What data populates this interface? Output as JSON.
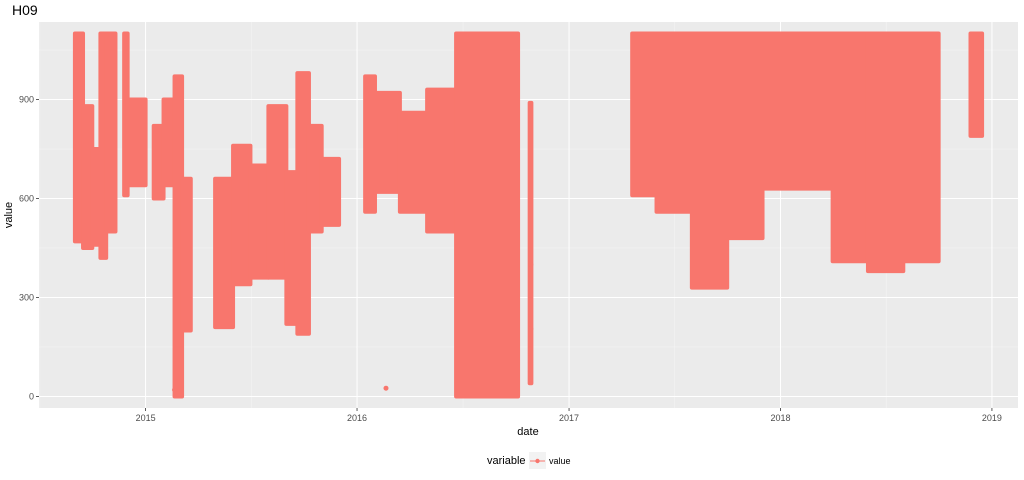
{
  "chart_data": {
    "type": "line",
    "title": "H09",
    "xlabel": "date",
    "ylabel": "value",
    "x_axis_type": "date",
    "xlim": [
      "2014-07-01",
      "2019-02-15"
    ],
    "ylim": [
      -35,
      1135
    ],
    "x_ticks": [
      {
        "date": "2015-01-01",
        "label": "2015"
      },
      {
        "date": "2016-01-01",
        "label": "2016"
      },
      {
        "date": "2017-01-01",
        "label": "2017"
      },
      {
        "date": "2018-01-01",
        "label": "2018"
      },
      {
        "date": "2019-01-01",
        "label": "2019"
      }
    ],
    "y_ticks": [
      0,
      300,
      600,
      900
    ],
    "grid": true,
    "legend": {
      "title": "variable",
      "position": "bottom"
    },
    "series": [
      {
        "name": "value",
        "color": "#F8766D",
        "segments": [
          {
            "from": "2014-09-01",
            "to": "2014-09-15",
            "min": 470,
            "max": 1100
          },
          {
            "from": "2014-09-15",
            "to": "2014-10-01",
            "min": 450,
            "max": 880
          },
          {
            "from": "2014-10-01",
            "to": "2014-10-15",
            "min": 460,
            "max": 750
          },
          {
            "from": "2014-10-15",
            "to": "2014-10-25",
            "min": 420,
            "max": 1100
          },
          {
            "from": "2014-10-25",
            "to": "2014-11-10",
            "min": 500,
            "max": 1100
          },
          {
            "from": "2014-11-25",
            "to": "2014-12-01",
            "min": 610,
            "max": 1100
          },
          {
            "from": "2014-12-01",
            "to": "2015-01-01",
            "min": 640,
            "max": 900
          },
          {
            "from": "2015-01-15",
            "to": "2015-02-01",
            "min": 600,
            "max": 820
          },
          {
            "from": "2015-02-01",
            "to": "2015-02-20",
            "min": 640,
            "max": 900
          },
          {
            "from": "2015-02-20",
            "to": "2015-03-05",
            "min": 0,
            "max": 970
          },
          {
            "from": "2015-03-05",
            "to": "2015-03-20",
            "min": 200,
            "max": 660
          },
          {
            "from": "2015-05-01",
            "to": "2015-06-01",
            "min": 210,
            "max": 660
          },
          {
            "from": "2015-06-01",
            "to": "2015-07-01",
            "min": 340,
            "max": 760
          },
          {
            "from": "2015-07-01",
            "to": "2015-08-01",
            "min": 360,
            "max": 700
          },
          {
            "from": "2015-08-01",
            "to": "2015-09-01",
            "min": 360,
            "max": 880
          },
          {
            "from": "2015-09-01",
            "to": "2015-09-20",
            "min": 220,
            "max": 680
          },
          {
            "from": "2015-09-20",
            "to": "2015-10-10",
            "min": 190,
            "max": 980
          },
          {
            "from": "2015-10-10",
            "to": "2015-11-01",
            "min": 500,
            "max": 820
          },
          {
            "from": "2015-11-01",
            "to": "2015-12-01",
            "min": 520,
            "max": 720
          },
          {
            "from": "2016-01-15",
            "to": "2016-02-01",
            "min": 560,
            "max": 970
          },
          {
            "from": "2016-02-01",
            "to": "2016-03-15",
            "min": 620,
            "max": 920
          },
          {
            "from": "2016-03-15",
            "to": "2016-05-01",
            "min": 560,
            "max": 860
          },
          {
            "from": "2016-05-01",
            "to": "2016-06-20",
            "min": 500,
            "max": 930
          },
          {
            "from": "2016-06-20",
            "to": "2016-10-05",
            "min": 0,
            "max": 1100
          },
          {
            "from": "2016-10-25",
            "to": "2016-10-28",
            "min": 40,
            "max": 890
          },
          {
            "from": "2017-04-20",
            "to": "2017-06-01",
            "min": 610,
            "max": 1100
          },
          {
            "from": "2017-06-01",
            "to": "2017-08-01",
            "min": 560,
            "max": 1100
          },
          {
            "from": "2017-08-01",
            "to": "2017-10-01",
            "min": 330,
            "max": 1100
          },
          {
            "from": "2017-10-01",
            "to": "2017-12-01",
            "min": 480,
            "max": 1100
          },
          {
            "from": "2017-12-01",
            "to": "2018-04-01",
            "min": 630,
            "max": 1100
          },
          {
            "from": "2018-04-01",
            "to": "2018-06-01",
            "min": 410,
            "max": 1100
          },
          {
            "from": "2018-06-01",
            "to": "2018-08-01",
            "min": 380,
            "max": 1100
          },
          {
            "from": "2018-08-01",
            "to": "2018-10-01",
            "min": 410,
            "max": 1100
          },
          {
            "from": "2018-11-25",
            "to": "2018-12-15",
            "min": 790,
            "max": 1100
          }
        ],
        "isolated_points": [
          {
            "date": "2015-02-20",
            "value": 20
          },
          {
            "date": "2016-02-20",
            "value": 25
          },
          {
            "date": "2016-10-27",
            "value": 400
          },
          {
            "date": "2016-10-27",
            "value": 205
          }
        ]
      }
    ]
  }
}
